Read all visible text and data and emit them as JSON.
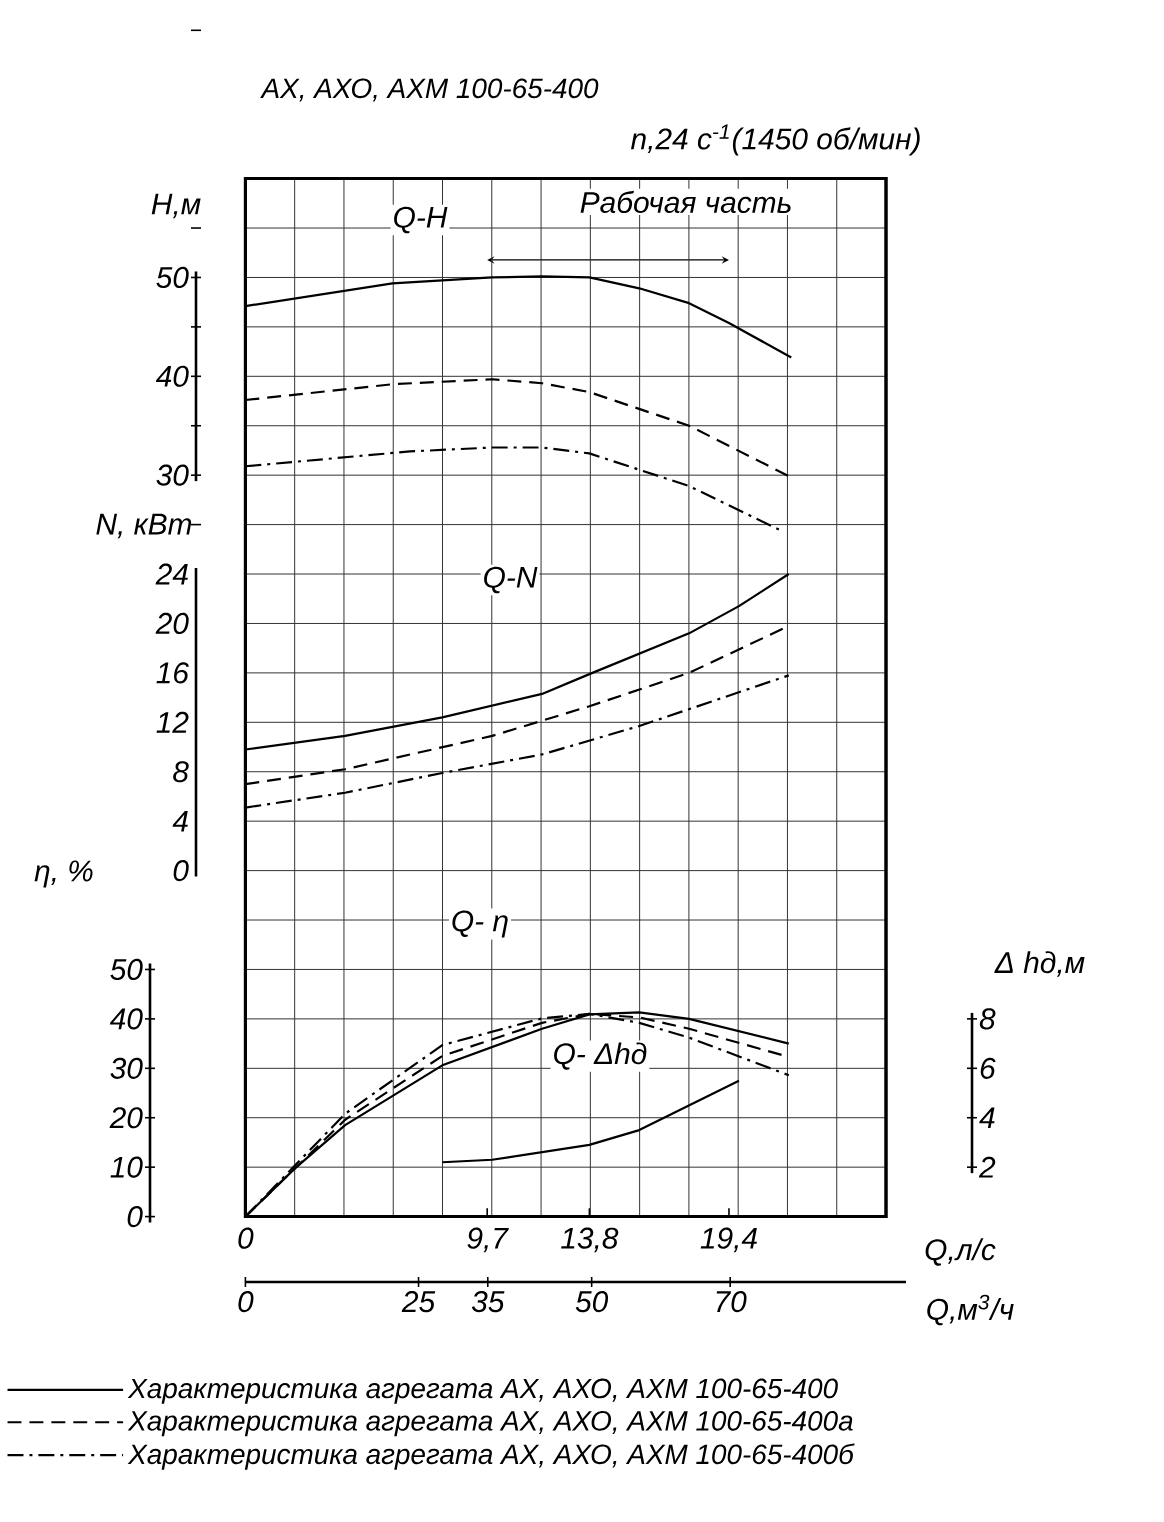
{
  "chart_data": [
    {
      "type": "line",
      "title": "АХ, АХО, АХМ 100-65-400",
      "ylabel": "H,м",
      "y2label": "N, кВт",
      "y3label": "η, %",
      "xlabel": "Q,л/с",
      "x2label": "Q,м$^{3}$/ч",
      "xlim": [
        0,
        25.7
      ],
      "xticks": [
        0,
        {
          "value": 9.7,
          "label": "9,7"
        },
        {
          "value": 13.8,
          "label": "13,8"
        },
        {
          "value": 19.4,
          "label": "19,4"
        }
      ],
      "x2lim": [
        0,
        92.5
      ],
      "x2ticks": [
        0,
        25,
        35,
        50,
        70
      ],
      "ylim": [
        -45,
        60
      ],
      "yticks": [
        30,
        40,
        50
      ],
      "y2lim": [
        -28,
        56
      ],
      "y2ticks": [
        0,
        4,
        8,
        12,
        16,
        20,
        24
      ],
      "y3lim": [
        0,
        210
      ],
      "y3ticks": [
        0,
        10,
        20,
        30,
        40,
        50
      ],
      "grid": true,
      "legend": "bottom",
      "marker": "none",
      "annotations": [
        "Q-H",
        "n,24 с$^{-1}$(1450 об/мин)",
        "Q-N",
        "Q- η",
        "Q- Δhд",
        "Рабочая часть"
      ],
      "series": [
        {
          "name": "Характеристика агрегата АХ, АХО, АХМ 100-65-400",
          "color": "#000000",
          "line_style": "solid",
          "x": [
            0,
            5.9,
            9.9,
            11.9,
            13.8,
            15.8,
            17.8,
            19.4,
            21.9
          ],
          "values": [
            47.1,
            49.4,
            50.0,
            50.1,
            50.0,
            48.9,
            47.4,
            45.4,
            41.9
          ]
        },
        {
          "name": "Характеристика агрегата АХ, АХО, АХМ 100-65-400а",
          "color": "#000000",
          "line_style": "dashed",
          "x": [
            0,
            5.9,
            9.9,
            11.9,
            13.8,
            17.8,
            21.8
          ],
          "values": [
            37.6,
            39.2,
            39.7,
            39.3,
            38.4,
            35.0,
            29.9
          ]
        },
        {
          "name": "Характеристика агрегата АХ, АХО, АХМ 100-65-400б",
          "color": "#000000",
          "line_style": "dashdot",
          "x": [
            0,
            6.6,
            9.9,
            11.9,
            13.8,
            17.8,
            21.4
          ],
          "values": [
            30.9,
            32.4,
            32.8,
            32.8,
            32.2,
            28.9,
            24.5
          ]
        },
        {
          "color": "#000000",
          "line_style": "solid",
          "axis": "y2",
          "x": [
            0,
            4.0,
            7.9,
            11.9,
            13.8,
            17.8,
            19.8,
            21.8
          ],
          "values": [
            9.8,
            10.9,
            12.4,
            14.3,
            15.9,
            19.2,
            21.4,
            24.0
          ]
        },
        {
          "color": "#000000",
          "line_style": "dashed",
          "axis": "y2",
          "x": [
            0,
            4.0,
            9.9,
            13.8,
            17.8,
            21.8
          ],
          "values": [
            7.0,
            8.2,
            10.9,
            13.3,
            16.0,
            19.8
          ]
        },
        {
          "color": "#000000",
          "line_style": "dashdot",
          "axis": "y2",
          "x": [
            0,
            4.0,
            7.9,
            11.9,
            15.8,
            21.8
          ],
          "values": [
            5.1,
            6.3,
            7.9,
            9.4,
            11.7,
            15.8
          ]
        },
        {
          "color": "#000000",
          "line_style": "solid",
          "axis": "y3",
          "x": [
            0,
            2.0,
            4.0,
            7.9,
            11.9,
            13.8,
            15.8,
            17.8,
            21.8
          ],
          "values": [
            0,
            9.8,
            18.5,
            30.6,
            38.0,
            40.9,
            41.3,
            40.0,
            35.0
          ]
        },
        {
          "color": "#000000",
          "line_style": "dashed",
          "axis": "y3",
          "x": [
            0,
            4.0,
            7.9,
            11.9,
            13.8,
            15.8,
            17.8,
            21.8
          ],
          "values": [
            0,
            19.6,
            32.5,
            39.2,
            41.0,
            40.3,
            38.0,
            32.3
          ]
        },
        {
          "color": "#000000",
          "line_style": "dashdot",
          "axis": "y3",
          "x": [
            0,
            4.0,
            7.9,
            11.9,
            13.8,
            15.8,
            17.8,
            21.8
          ],
          "values": [
            0,
            20.8,
            34.7,
            40.1,
            41.0,
            39.2,
            36.2,
            28.6
          ]
        }
      ]
    },
    {
      "type": "line",
      "ylabel": "Δ hд,м",
      "xlim": [
        0,
        25.7
      ],
      "ylim": [
        0,
        42
      ],
      "yticks": [
        2,
        4,
        6,
        8
      ],
      "tick_labels": "y",
      "marker": "none",
      "series": [
        {
          "color": "#000000",
          "line_style": "solid",
          "x": [
            7.9,
            9.9,
            13.8,
            15.8,
            19.8
          ],
          "values": [
            2.2,
            2.3,
            2.9,
            3.5,
            5.5
          ]
        }
      ]
    }
  ]
}
